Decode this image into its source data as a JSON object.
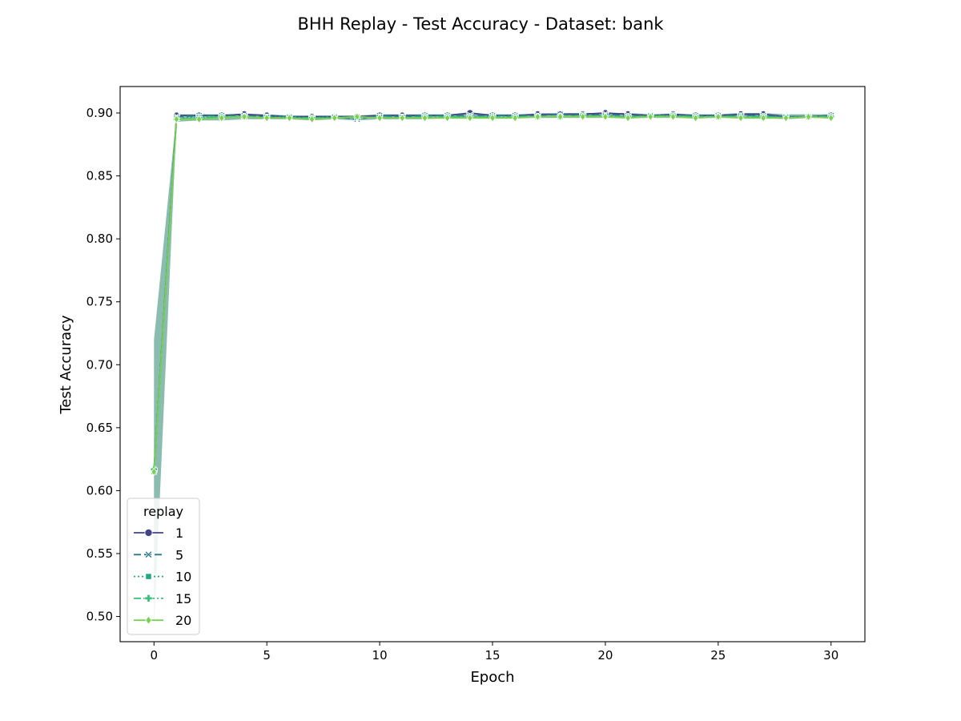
{
  "chart_data": {
    "type": "line",
    "title": "BHH Replay - Test Accuracy - Dataset: bank",
    "xlabel": "Epoch",
    "ylabel": "Test Accuracy",
    "xlim": [
      -1.5,
      31.5
    ],
    "ylim": [
      0.48,
      0.921
    ],
    "xticks": [
      "0",
      "5",
      "10",
      "15",
      "20",
      "25",
      "30"
    ],
    "xtick_values": [
      0,
      5,
      10,
      15,
      20,
      25,
      30
    ],
    "yticks": [
      "0.50",
      "0.55",
      "0.60",
      "0.65",
      "0.70",
      "0.75",
      "0.80",
      "0.85",
      "0.90"
    ],
    "ytick_values": [
      0.5,
      0.55,
      0.6,
      0.65,
      0.7,
      0.75,
      0.8,
      0.85,
      0.9
    ],
    "grid": false,
    "legend": {
      "title": "replay",
      "placement": "lower-left"
    },
    "band": {
      "x": [
        0,
        1,
        2,
        3,
        4,
        5,
        6,
        7,
        8,
        9,
        10,
        11,
        12,
        13,
        14,
        15,
        16,
        17,
        18,
        19,
        20,
        21,
        22,
        23,
        24,
        25,
        26,
        27,
        28,
        29,
        30
      ],
      "upper": [
        0.72,
        0.899,
        0.899,
        0.899,
        0.899,
        0.899,
        0.898,
        0.898,
        0.898,
        0.898,
        0.899,
        0.899,
        0.899,
        0.899,
        0.9,
        0.899,
        0.899,
        0.899,
        0.9,
        0.9,
        0.9,
        0.9,
        0.899,
        0.899,
        0.899,
        0.899,
        0.9,
        0.9,
        0.899,
        0.899,
        0.899
      ],
      "lower": [
        0.49,
        0.893,
        0.894,
        0.894,
        0.895,
        0.895,
        0.895,
        0.894,
        0.895,
        0.894,
        0.895,
        0.895,
        0.895,
        0.896,
        0.896,
        0.896,
        0.896,
        0.896,
        0.896,
        0.896,
        0.896,
        0.896,
        0.896,
        0.896,
        0.896,
        0.896,
        0.896,
        0.896,
        0.895,
        0.896,
        0.896
      ],
      "color": "#5aa08f"
    },
    "x": [
      0,
      1,
      2,
      3,
      4,
      5,
      6,
      7,
      8,
      9,
      10,
      11,
      12,
      13,
      14,
      15,
      16,
      17,
      18,
      19,
      20,
      21,
      22,
      23,
      24,
      25,
      26,
      27,
      28,
      29,
      30
    ],
    "series": [
      {
        "name": "1",
        "color": "#414487",
        "dash": "solid",
        "marker": "circle",
        "values": [
          0.616,
          0.898,
          0.898,
          0.898,
          0.899,
          0.898,
          0.897,
          0.897,
          0.897,
          0.897,
          0.898,
          0.898,
          0.898,
          0.898,
          0.9,
          0.898,
          0.898,
          0.899,
          0.899,
          0.899,
          0.9,
          0.899,
          0.898,
          0.899,
          0.898,
          0.898,
          0.899,
          0.899,
          0.897,
          0.897,
          0.898
        ]
      },
      {
        "name": "5",
        "color": "#2a788e",
        "dash": "dashed",
        "marker": "x",
        "values": [
          0.616,
          0.897,
          0.898,
          0.898,
          0.898,
          0.897,
          0.897,
          0.896,
          0.897,
          0.895,
          0.898,
          0.897,
          0.898,
          0.898,
          0.898,
          0.898,
          0.898,
          0.898,
          0.899,
          0.898,
          0.899,
          0.898,
          0.898,
          0.898,
          0.898,
          0.898,
          0.898,
          0.898,
          0.897,
          0.897,
          0.898
        ]
      },
      {
        "name": "10",
        "color": "#22a884",
        "dash": "dotted",
        "marker": "square",
        "values": [
          0.615,
          0.896,
          0.897,
          0.897,
          0.897,
          0.897,
          0.897,
          0.896,
          0.897,
          0.896,
          0.897,
          0.897,
          0.897,
          0.897,
          0.897,
          0.897,
          0.897,
          0.897,
          0.897,
          0.898,
          0.898,
          0.897,
          0.898,
          0.898,
          0.897,
          0.897,
          0.898,
          0.897,
          0.897,
          0.897,
          0.897
        ]
      },
      {
        "name": "15",
        "color": "#3bbf78",
        "dash": "dashdot",
        "marker": "plus",
        "values": [
          0.617,
          0.895,
          0.896,
          0.897,
          0.897,
          0.896,
          0.896,
          0.896,
          0.896,
          0.897,
          0.896,
          0.896,
          0.897,
          0.897,
          0.897,
          0.897,
          0.897,
          0.897,
          0.897,
          0.898,
          0.897,
          0.897,
          0.897,
          0.898,
          0.897,
          0.897,
          0.897,
          0.897,
          0.896,
          0.897,
          0.897
        ]
      },
      {
        "name": "20",
        "color": "#7ad151",
        "dash": "solid",
        "marker": "diamond",
        "values": [
          0.615,
          0.895,
          0.895,
          0.896,
          0.897,
          0.896,
          0.896,
          0.895,
          0.896,
          0.897,
          0.896,
          0.896,
          0.896,
          0.896,
          0.896,
          0.896,
          0.896,
          0.897,
          0.897,
          0.897,
          0.897,
          0.896,
          0.897,
          0.897,
          0.896,
          0.897,
          0.896,
          0.896,
          0.896,
          0.897,
          0.896
        ]
      }
    ]
  }
}
